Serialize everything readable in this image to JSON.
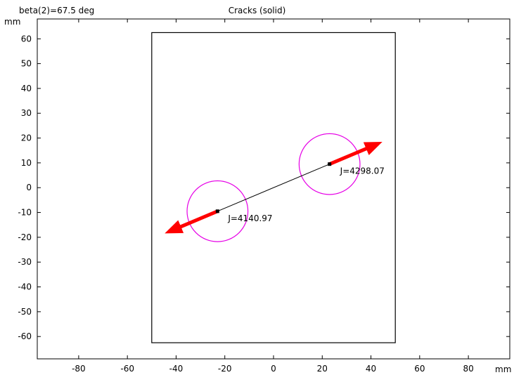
{
  "header": {
    "parameter": "beta(2)=67.5 deg",
    "title": "Cracks (solid)"
  },
  "axes": {
    "x_unit": "mm",
    "y_unit": "mm",
    "xlim": [
      -97,
      97
    ],
    "ylim": [
      -69,
      68
    ],
    "x_ticks": [
      -80,
      -60,
      -40,
      -20,
      0,
      20,
      40,
      60,
      80
    ],
    "y_ticks": [
      60,
      50,
      40,
      30,
      20,
      10,
      0,
      -10,
      -20,
      -30,
      -40,
      -50,
      -60
    ]
  },
  "geometry": {
    "plate": {
      "x": [
        -50,
        50
      ],
      "y": [
        -62.5,
        62.5
      ]
    },
    "crack": {
      "start": [
        -23,
        -9.5
      ],
      "end": [
        23,
        9.5
      ]
    },
    "circles": [
      {
        "center": [
          -23,
          -9.5
        ],
        "radius": 12.5
      },
      {
        "center": [
          23,
          9.5
        ],
        "radius": 12.5
      }
    ]
  },
  "crack_tips": [
    {
      "position": [
        -23,
        -9.5
      ],
      "label": "J=4140.97",
      "arrow_end": [
        -46,
        -19
      ]
    },
    {
      "position": [
        23,
        9.5
      ],
      "label": "J=4298.07",
      "arrow_end": [
        46,
        19
      ]
    }
  ],
  "colors": {
    "frame": "#000000",
    "plate": "#000000",
    "crack": "#000000",
    "circle": "#e600e6",
    "arrow": "#ff0000"
  }
}
